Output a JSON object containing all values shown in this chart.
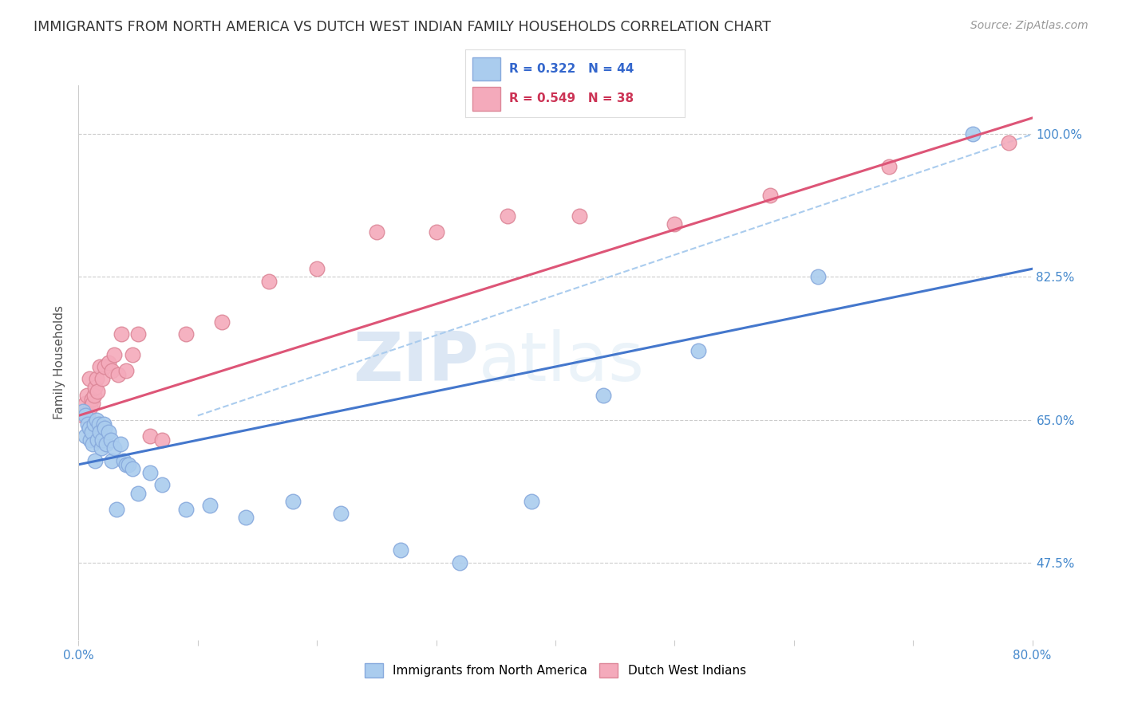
{
  "title": "IMMIGRANTS FROM NORTH AMERICA VS DUTCH WEST INDIAN FAMILY HOUSEHOLDS CORRELATION CHART",
  "source": "Source: ZipAtlas.com",
  "ylabel": "Family Households",
  "y_ticks": [
    0.475,
    0.65,
    0.825,
    1.0
  ],
  "y_tick_labels": [
    "47.5%",
    "65.0%",
    "82.5%",
    "100.0%"
  ],
  "xlim": [
    0.0,
    0.8
  ],
  "ylim": [
    0.38,
    1.06
  ],
  "blue_label": "Immigrants from North America",
  "pink_label": "Dutch West Indians",
  "blue_color": "#AACCEE",
  "pink_color": "#F4AABB",
  "blue_edge": "#88AADD",
  "pink_edge": "#DD8899",
  "blue_line_color": "#4477CC",
  "pink_line_color": "#DD5577",
  "ref_line_color": "#AACCEE",
  "watermark_zip": "ZIP",
  "watermark_atlas": "atlas",
  "title_fontsize": 12.5,
  "source_fontsize": 10,
  "blue_line_x0": 0.0,
  "blue_line_y0": 0.595,
  "blue_line_x1": 0.8,
  "blue_line_y1": 0.835,
  "pink_line_x0": 0.0,
  "pink_line_y0": 0.655,
  "pink_line_x1": 0.8,
  "pink_line_y1": 1.02,
  "ref_line_x0": 0.1,
  "ref_line_y0": 0.655,
  "ref_line_x1": 0.8,
  "ref_line_y1": 1.0,
  "blue_scatter_x": [
    0.004,
    0.006,
    0.006,
    0.008,
    0.009,
    0.01,
    0.011,
    0.012,
    0.013,
    0.014,
    0.015,
    0.016,
    0.017,
    0.018,
    0.019,
    0.02,
    0.021,
    0.022,
    0.023,
    0.025,
    0.027,
    0.028,
    0.03,
    0.032,
    0.035,
    0.038,
    0.04,
    0.042,
    0.045,
    0.05,
    0.06,
    0.07,
    0.09,
    0.11,
    0.14,
    0.18,
    0.22,
    0.27,
    0.32,
    0.38,
    0.44,
    0.52,
    0.62,
    0.75
  ],
  "blue_scatter_y": [
    0.66,
    0.63,
    0.655,
    0.645,
    0.64,
    0.625,
    0.635,
    0.62,
    0.645,
    0.6,
    0.65,
    0.625,
    0.645,
    0.635,
    0.615,
    0.625,
    0.645,
    0.64,
    0.62,
    0.635,
    0.625,
    0.6,
    0.615,
    0.54,
    0.62,
    0.6,
    0.595,
    0.595,
    0.59,
    0.56,
    0.585,
    0.57,
    0.54,
    0.545,
    0.53,
    0.55,
    0.535,
    0.49,
    0.475,
    0.55,
    0.68,
    0.735,
    0.825,
    1.0
  ],
  "pink_scatter_x": [
    0.003,
    0.005,
    0.006,
    0.007,
    0.008,
    0.009,
    0.01,
    0.011,
    0.012,
    0.013,
    0.014,
    0.015,
    0.016,
    0.018,
    0.02,
    0.022,
    0.025,
    0.028,
    0.03,
    0.033,
    0.036,
    0.04,
    0.045,
    0.05,
    0.06,
    0.07,
    0.09,
    0.12,
    0.16,
    0.2,
    0.25,
    0.3,
    0.36,
    0.42,
    0.5,
    0.58,
    0.68,
    0.78
  ],
  "pink_scatter_y": [
    0.655,
    0.66,
    0.67,
    0.68,
    0.655,
    0.7,
    0.665,
    0.675,
    0.67,
    0.68,
    0.69,
    0.7,
    0.685,
    0.715,
    0.7,
    0.715,
    0.72,
    0.71,
    0.73,
    0.705,
    0.755,
    0.71,
    0.73,
    0.755,
    0.63,
    0.625,
    0.755,
    0.77,
    0.82,
    0.835,
    0.88,
    0.88,
    0.9,
    0.9,
    0.89,
    0.925,
    0.96,
    0.99
  ]
}
